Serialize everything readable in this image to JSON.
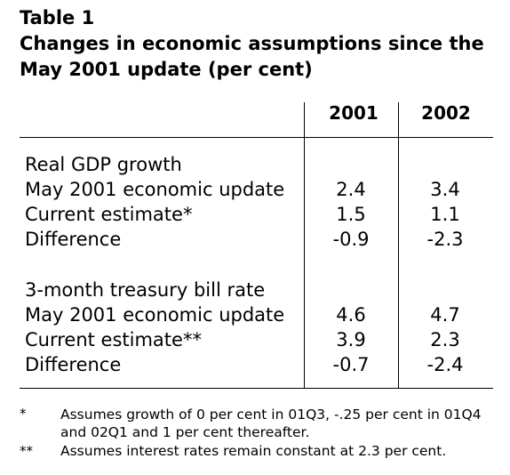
{
  "title": {
    "line1": "Table 1",
    "line2": "Changes in economic assumptions since the",
    "line3": "May 2001 update (per cent)"
  },
  "table": {
    "columns": [
      "2001",
      "2002"
    ],
    "sections": [
      {
        "heading": "Real GDP growth",
        "rows": [
          {
            "label": "May 2001 economic update",
            "values": [
              "2.4",
              "3.4"
            ]
          },
          {
            "label": "Current estimate*",
            "values": [
              "1.5",
              "1.1"
            ]
          },
          {
            "label": "Difference",
            "values": [
              "-0.9",
              "-2.3"
            ]
          }
        ]
      },
      {
        "heading": "3-month treasury bill rate",
        "rows": [
          {
            "label": "May 2001 economic update",
            "values": [
              "4.6",
              "4.7"
            ]
          },
          {
            "label": "Current estimate**",
            "values": [
              "3.9",
              "2.3"
            ]
          },
          {
            "label": "Difference",
            "values": [
              "-0.7",
              "-2.4"
            ]
          }
        ]
      }
    ]
  },
  "footnotes": [
    {
      "mark": "*",
      "text": "Assumes growth of 0 per cent in 01Q3, -.25 per cent in 01Q4 and 02Q1 and 1 per cent thereafter."
    },
    {
      "mark": "**",
      "text": "Assumes interest rates remain constant at 2.3 per cent."
    }
  ]
}
